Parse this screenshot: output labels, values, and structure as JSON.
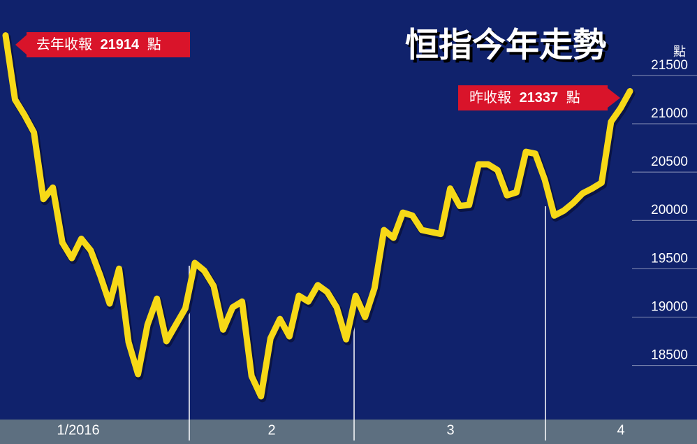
{
  "chart_data": {
    "type": "line",
    "title": "恒指今年走勢",
    "unit": "點",
    "months": [
      "1/2016",
      "2",
      "3",
      "4"
    ],
    "color": "#f7d917",
    "ylim": [
      17940,
      22280
    ],
    "yticks": [
      18500,
      19000,
      19500,
      20000,
      20500,
      21000,
      21500
    ],
    "annotations": {
      "start_prefix": "去年收報",
      "end_prefix": "昨收報",
      "suffix": "點"
    },
    "values": [
      21914,
      21250,
      21090,
      20910,
      20220,
      20340,
      19770,
      19610,
      19810,
      19690,
      19430,
      19140,
      19500,
      18740,
      18410,
      18920,
      19190,
      18750,
      18920,
      19090,
      19560,
      19480,
      19320,
      18870,
      19100,
      19160,
      18390,
      18180,
      18780,
      18980,
      18800,
      19220,
      19160,
      19330,
      19260,
      19100,
      18770,
      19220,
      19000,
      19300,
      19900,
      19820,
      20080,
      20050,
      19900,
      19880,
      19860,
      20330,
      20150,
      20160,
      20580,
      20580,
      20520,
      20260,
      20290,
      20710,
      20690,
      20420,
      20050,
      20100,
      20180,
      20280,
      20330,
      20390,
      21020,
      21160,
      21337
    ]
  }
}
